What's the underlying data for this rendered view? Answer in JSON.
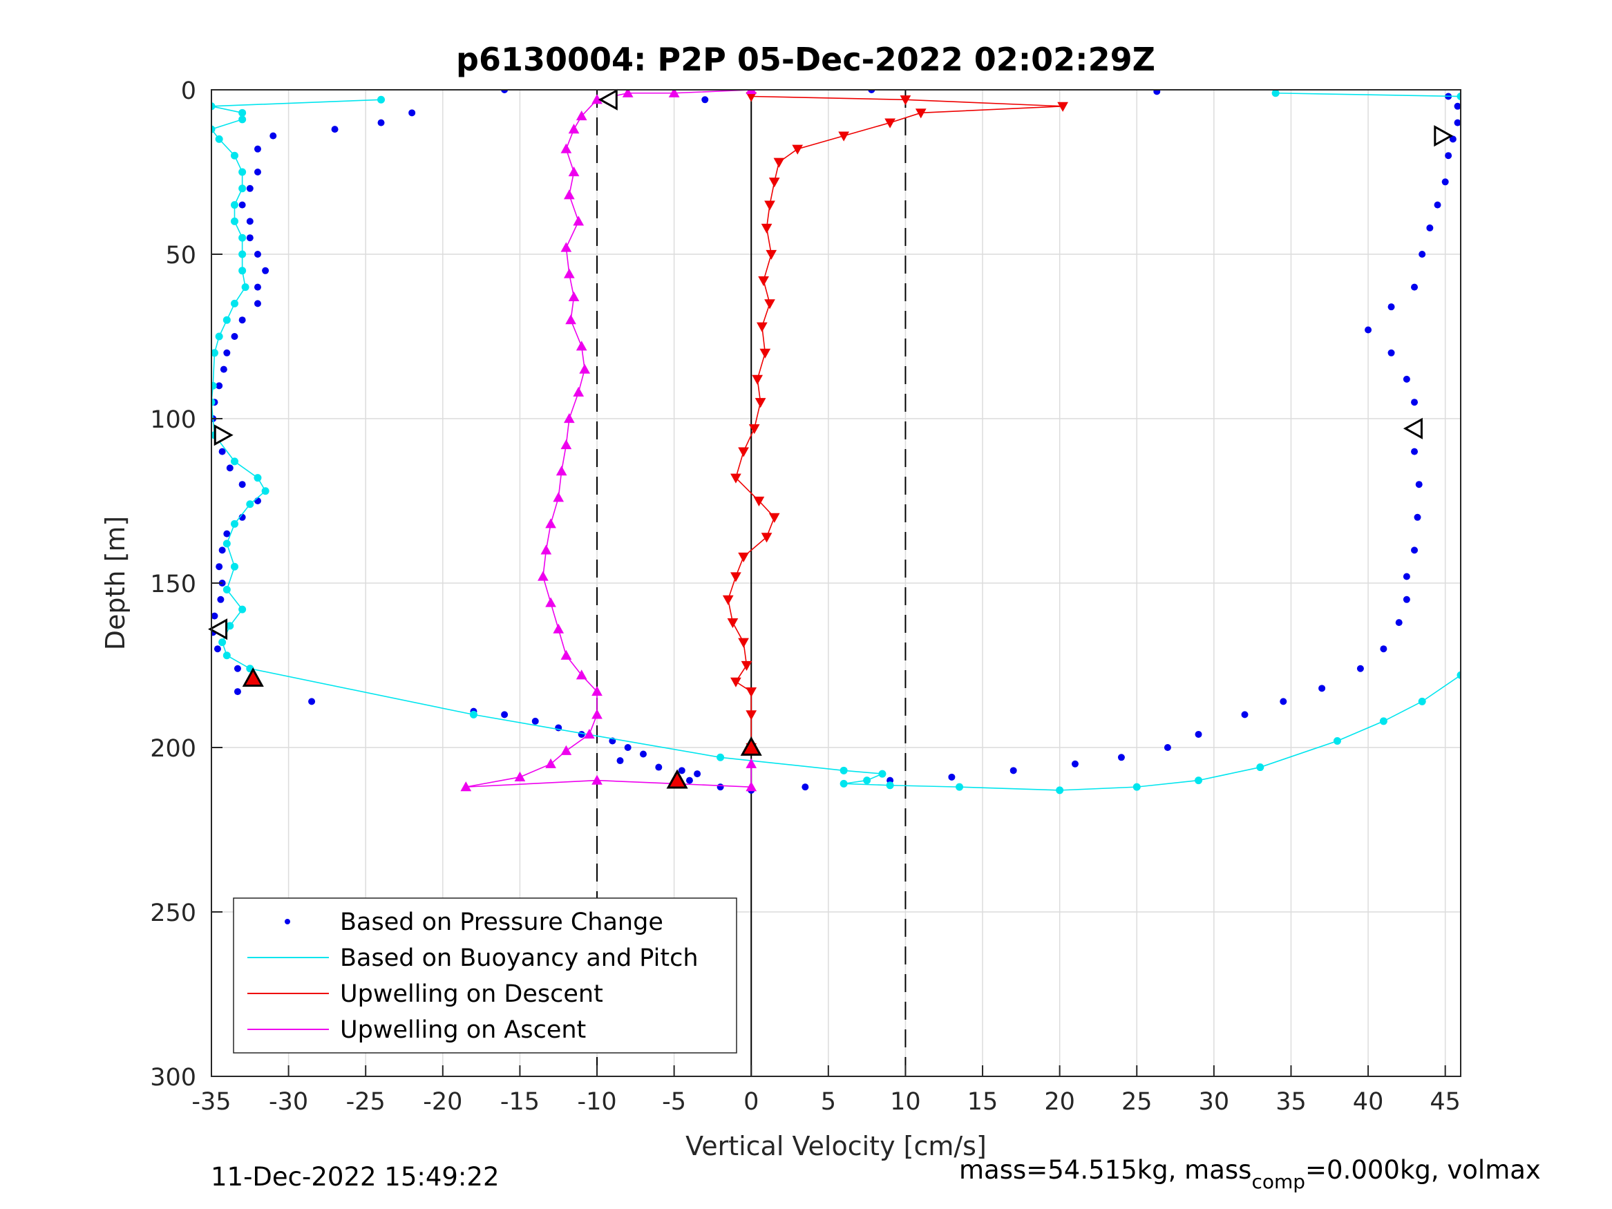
{
  "chart_data": {
    "type": "scatter",
    "title": "p6130004: P2P 05-Dec-2022 02:02:29Z",
    "xlabel": "Vertical Velocity [cm/s]",
    "ylabel": "Depth [m]",
    "xlim": [
      -35,
      46
    ],
    "ylim": [
      0,
      300
    ],
    "y_reversed": true,
    "xticks": [
      -35,
      -30,
      -25,
      -20,
      -15,
      -10,
      -5,
      0,
      5,
      10,
      15,
      20,
      25,
      30,
      35,
      40,
      45
    ],
    "xtick_labels": [
      "-35",
      "-30",
      "-25",
      "-20",
      "-15",
      "-10",
      "-5",
      "0",
      "5",
      "10",
      "15",
      "20",
      "25",
      "30",
      "35",
      "40",
      "45"
    ],
    "yticks": [
      0,
      50,
      100,
      150,
      200,
      250,
      300
    ],
    "ytick_labels": [
      "0",
      "50",
      "100",
      "150",
      "200",
      "250",
      "300"
    ],
    "grid": true,
    "dashed_vlines": [
      -10,
      10
    ],
    "solid_vlines": [
      0
    ],
    "legend_position": "bottom-left",
    "series": [
      {
        "name": "Based on Pressure Change",
        "color": "#0000ee",
        "marker": "dot",
        "descent": [
          [
            -16,
            0
          ],
          [
            -3,
            3
          ],
          [
            -22,
            7
          ],
          [
            -24,
            10
          ],
          [
            -27,
            12
          ],
          [
            -31,
            14
          ],
          [
            -32,
            18
          ],
          [
            -32,
            25
          ],
          [
            -32.5,
            30
          ],
          [
            -33,
            35
          ],
          [
            -32.5,
            40
          ],
          [
            -32.5,
            45
          ],
          [
            -32,
            50
          ],
          [
            -31.5,
            55
          ],
          [
            -32,
            60
          ],
          [
            -32,
            65
          ],
          [
            -33,
            70
          ],
          [
            -33.5,
            75
          ],
          [
            -34,
            80
          ],
          [
            -34.2,
            85
          ],
          [
            -34.5,
            90
          ],
          [
            -34.8,
            95
          ],
          [
            -34.9,
            100
          ],
          [
            -34.7,
            105
          ],
          [
            -34.3,
            110
          ],
          [
            -33.8,
            115
          ],
          [
            -33,
            120
          ],
          [
            -32,
            125
          ],
          [
            -33,
            130
          ],
          [
            -34,
            135
          ],
          [
            -34.3,
            140
          ],
          [
            -34.5,
            145
          ],
          [
            -34.3,
            150
          ],
          [
            -34.4,
            155
          ],
          [
            -34.8,
            160
          ],
          [
            -34.9,
            165
          ],
          [
            -34.6,
            170
          ],
          [
            -33.3,
            176
          ],
          [
            -33.3,
            183
          ],
          [
            -28.5,
            186
          ],
          [
            -18,
            189
          ],
          [
            -16,
            190
          ],
          [
            -14,
            192
          ],
          [
            -12.5,
            194
          ],
          [
            -11,
            196
          ],
          [
            -9,
            198
          ],
          [
            -8,
            200
          ],
          [
            -7,
            202
          ],
          [
            -8.5,
            204
          ],
          [
            -6,
            206
          ],
          [
            -4.5,
            207
          ],
          [
            -3.5,
            208
          ],
          [
            -4,
            210
          ],
          [
            -5,
            211
          ],
          [
            -2,
            212
          ],
          [
            0,
            213
          ],
          [
            3.5,
            212
          ],
          [
            6,
            211
          ],
          [
            9,
            210
          ],
          [
            13,
            209
          ],
          [
            17,
            207
          ],
          [
            21,
            205
          ],
          [
            24,
            203
          ],
          [
            27,
            200
          ],
          [
            29,
            196
          ],
          [
            32,
            190
          ],
          [
            34.5,
            186
          ],
          [
            37,
            182
          ],
          [
            39.5,
            176
          ],
          [
            41,
            170
          ],
          [
            42,
            162
          ],
          [
            42.5,
            155
          ],
          [
            42.5,
            148
          ],
          [
            43,
            140
          ],
          [
            43.2,
            130
          ],
          [
            43.3,
            120
          ],
          [
            43,
            110
          ],
          [
            42.9,
            103
          ],
          [
            43,
            95
          ],
          [
            42.5,
            88
          ],
          [
            41.5,
            80
          ],
          [
            40,
            73
          ],
          [
            41.5,
            66
          ],
          [
            43,
            60
          ],
          [
            43.5,
            50
          ],
          [
            44,
            42
          ],
          [
            44.5,
            35
          ],
          [
            45,
            28
          ],
          [
            45.2,
            20
          ],
          [
            45.5,
            15
          ],
          [
            45.8,
            10
          ],
          [
            45.8,
            5
          ],
          [
            45.2,
            2
          ],
          [
            26.3,
            0.5
          ],
          [
            7.8,
            0
          ]
        ],
        "ascent": []
      },
      {
        "name": "Based on Buoyancy and Pitch",
        "color": "#00e5ee",
        "marker": "circle-line",
        "descent": [
          [
            -24,
            3
          ],
          [
            -35,
            5
          ],
          [
            -33,
            7
          ],
          [
            -33,
            9
          ],
          [
            -35,
            12
          ],
          [
            -34.5,
            15
          ],
          [
            -33.5,
            20
          ],
          [
            -33,
            25
          ],
          [
            -33,
            30
          ],
          [
            -33.5,
            35
          ],
          [
            -33.5,
            40
          ],
          [
            -33,
            45
          ],
          [
            -33,
            50
          ],
          [
            -33,
            55
          ],
          [
            -32.8,
            60
          ],
          [
            -33.5,
            65
          ],
          [
            -34,
            70
          ],
          [
            -34.5,
            75
          ],
          [
            -34.8,
            80
          ],
          [
            -34.9,
            90
          ],
          [
            -35,
            95
          ],
          [
            -34.8,
            105
          ],
          [
            -33.5,
            113
          ],
          [
            -32,
            118
          ],
          [
            -31.5,
            122
          ],
          [
            -32.5,
            126
          ],
          [
            -33.5,
            132
          ],
          [
            -34,
            138
          ],
          [
            -33.5,
            145
          ],
          [
            -34,
            152
          ],
          [
            -33,
            158
          ],
          [
            -33.8,
            163
          ],
          [
            -34.3,
            168
          ],
          [
            -34,
            172
          ],
          [
            -32.5,
            176
          ],
          [
            -18,
            190
          ],
          [
            -2,
            203
          ],
          [
            6,
            207
          ],
          [
            8.5,
            208
          ],
          [
            7.5,
            210
          ],
          [
            6,
            211
          ],
          [
            9,
            211.5
          ],
          [
            13.5,
            212
          ],
          [
            20,
            213
          ],
          [
            25,
            212
          ],
          [
            29,
            210
          ],
          [
            33,
            206
          ],
          [
            38,
            198
          ],
          [
            41,
            192
          ],
          [
            43.5,
            186
          ],
          [
            46,
            178
          ]
        ],
        "ascent": [
          [
            34,
            1
          ],
          [
            46,
            2
          ]
        ]
      },
      {
        "name": "Upwelling on Descent",
        "color": "#ee0000",
        "marker": "triangle-down",
        "descent": [
          [
            0,
            0
          ],
          [
            0,
            2
          ],
          [
            10,
            3
          ],
          [
            20.2,
            5
          ],
          [
            11,
            7
          ],
          [
            9,
            10
          ],
          [
            6,
            14
          ],
          [
            3,
            18
          ],
          [
            1.8,
            22
          ],
          [
            1.5,
            28
          ],
          [
            1.2,
            35
          ],
          [
            1,
            42
          ],
          [
            1.3,
            50
          ],
          [
            0.8,
            58
          ],
          [
            1.2,
            65
          ],
          [
            0.7,
            72
          ],
          [
            0.9,
            80
          ],
          [
            0.4,
            88
          ],
          [
            0.6,
            95
          ],
          [
            0.2,
            103
          ],
          [
            -0.5,
            110
          ],
          [
            -1,
            118
          ],
          [
            0.5,
            125
          ],
          [
            1.5,
            130
          ],
          [
            1,
            136
          ],
          [
            -0.5,
            142
          ],
          [
            -1,
            148
          ],
          [
            -1.5,
            155
          ],
          [
            -1.2,
            162
          ],
          [
            -0.5,
            168
          ],
          [
            -0.3,
            175
          ],
          [
            -1,
            180
          ],
          [
            0,
            183
          ],
          [
            0,
            190
          ],
          [
            0,
            200
          ]
        ],
        "ascent": []
      },
      {
        "name": "Upwelling on Ascent",
        "color": "#ee00ee",
        "marker": "triangle-up",
        "descent": [],
        "ascent": [
          [
            0,
            0
          ],
          [
            -5,
            1
          ],
          [
            -8,
            1
          ],
          [
            -10,
            3
          ],
          [
            -11,
            8
          ],
          [
            -11.5,
            12
          ],
          [
            -12,
            18
          ],
          [
            -11.5,
            25
          ],
          [
            -11.8,
            32
          ],
          [
            -11.2,
            40
          ],
          [
            -12,
            48
          ],
          [
            -11.8,
            56
          ],
          [
            -11.5,
            63
          ],
          [
            -11.7,
            70
          ],
          [
            -11,
            78
          ],
          [
            -10.8,
            85
          ],
          [
            -11.2,
            92
          ],
          [
            -11.8,
            100
          ],
          [
            -12,
            108
          ],
          [
            -12.3,
            116
          ],
          [
            -12.5,
            124
          ],
          [
            -13,
            132
          ],
          [
            -13.3,
            140
          ],
          [
            -13.5,
            148
          ],
          [
            -13,
            156
          ],
          [
            -12.5,
            164
          ],
          [
            -12,
            172
          ],
          [
            -11,
            178
          ],
          [
            -10,
            183
          ],
          [
            -10,
            190
          ],
          [
            -10.5,
            196
          ],
          [
            -12,
            201
          ],
          [
            -13,
            205
          ],
          [
            -15,
            209
          ],
          [
            -18.5,
            212
          ],
          [
            -10,
            210
          ],
          [
            -5,
            211
          ],
          [
            0,
            212
          ],
          [
            0,
            205
          ]
        ]
      }
    ],
    "markers": [
      {
        "shape": "triangle-left",
        "fill": "#ffffff",
        "x": -9.2,
        "y": 3
      },
      {
        "shape": "triangle-right",
        "fill": "#ffffff",
        "x": 44.8,
        "y": 14
      },
      {
        "shape": "triangle-right",
        "fill": "#ffffff",
        "x": -34.3,
        "y": 105
      },
      {
        "shape": "triangle-left",
        "fill": "#ffffff",
        "x": 43,
        "y": 103
      },
      {
        "shape": "triangle-left",
        "fill": "#ffffff",
        "x": -34.5,
        "y": 164
      },
      {
        "shape": "triangle-up",
        "fill": "#ee0000",
        "x": -32.3,
        "y": 179
      },
      {
        "shape": "triangle-up",
        "fill": "#ee0000",
        "x": 0,
        "y": 200
      },
      {
        "shape": "triangle-up",
        "fill": "#ee0000",
        "x": -4.8,
        "y": 210
      }
    ]
  },
  "footer": {
    "timestamp": "11-Dec-2022 15:49:22",
    "params_prefix": "mass=54.515kg, mass",
    "params_sub": "comp",
    "params_suffix": "=0.000kg, volmax"
  }
}
